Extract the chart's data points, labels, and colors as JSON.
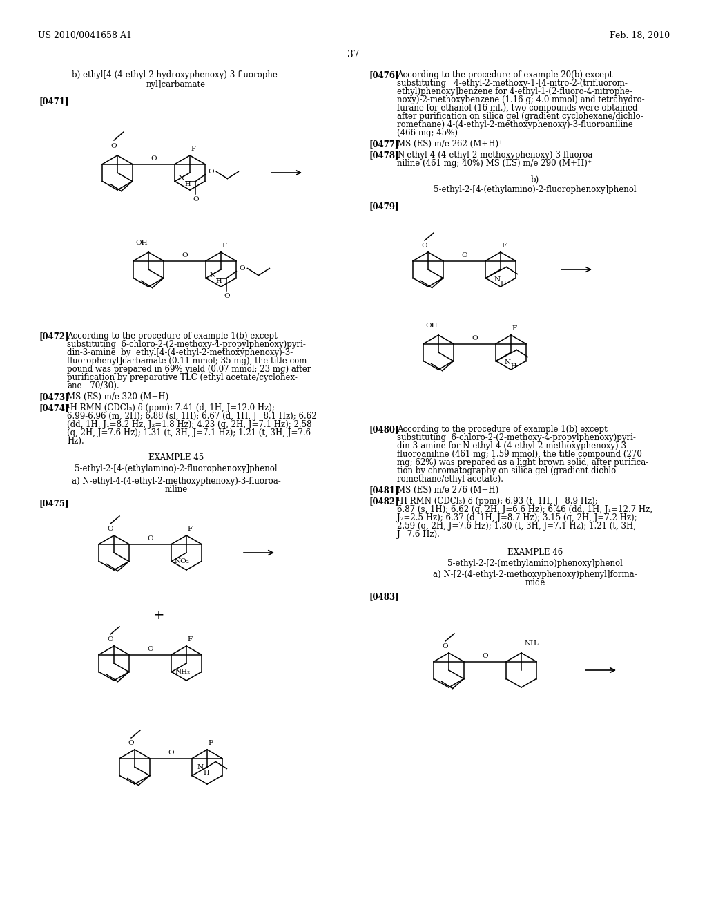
{
  "page_header_left": "US 2010/0041658 A1",
  "page_header_right": "Feb. 18, 2010",
  "page_number": "37",
  "background_color": "#ffffff",
  "figsize": [
    10.24,
    13.2
  ],
  "dpi": 100
}
